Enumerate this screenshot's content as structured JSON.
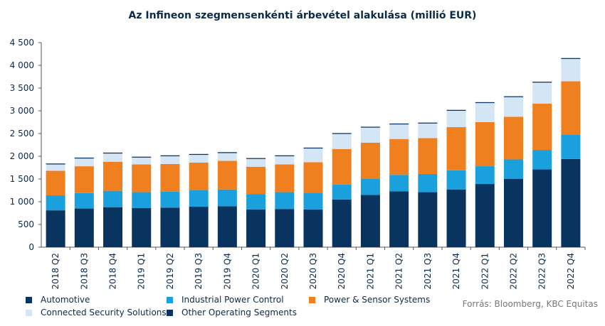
{
  "chart_data": {
    "type": "bar",
    "stacked": true,
    "title": "Az Infineon szegmensenkénti árbevétel alakulása (millió EUR)",
    "categories": [
      "2018 Q2",
      "2018 Q3",
      "2018 Q4",
      "2019 Q1",
      "2019 Q2",
      "2019 Q3",
      "2019 Q4",
      "2020 Q1",
      "2020 Q2",
      "2020 Q3",
      "2020 Q4",
      "2021 Q1",
      "2021 Q2",
      "2021 Q3",
      "2021 Q4",
      "2022 Q1",
      "2022 Q2",
      "2022 Q3",
      "2022 Q4"
    ],
    "series": [
      {
        "name": "Automotive",
        "color": "#0a3460",
        "values": [
          810,
          850,
          880,
          860,
          870,
          890,
          900,
          830,
          840,
          830,
          1050,
          1150,
          1230,
          1210,
          1270,
          1390,
          1500,
          1710,
          1940
        ]
      },
      {
        "name": "Industrial Power Control",
        "color": "#1aa0dc",
        "values": [
          330,
          340,
          360,
          350,
          350,
          370,
          370,
          340,
          370,
          370,
          330,
          360,
          360,
          400,
          420,
          390,
          430,
          430,
          540
        ]
      },
      {
        "name": "Power & Sensor Systems",
        "color": "#f07f20",
        "values": [
          540,
          590,
          640,
          610,
          610,
          600,
          630,
          600,
          610,
          670,
          780,
          790,
          790,
          790,
          950,
          970,
          940,
          1020,
          1170
        ]
      },
      {
        "name": "Connected Security Solutions",
        "color": "#d4e6f5",
        "values": [
          140,
          170,
          180,
          150,
          170,
          170,
          170,
          170,
          180,
          300,
          330,
          330,
          320,
          320,
          360,
          420,
          430,
          460,
          490
        ]
      },
      {
        "name": "Other Operating Segments",
        "color": "#0a3460",
        "values": [
          20,
          20,
          20,
          20,
          20,
          20,
          20,
          20,
          20,
          20,
          20,
          20,
          20,
          20,
          20,
          20,
          20,
          20,
          20
        ]
      }
    ],
    "ylim": [
      0,
      4500
    ],
    "yticks": [
      "0",
      "500",
      "1 000",
      "1 500",
      "2 000",
      "2 500",
      "3 000",
      "3 500",
      "4 000",
      "4 500"
    ],
    "grid": false,
    "legend_position": "bottom-left"
  },
  "source": "Forrás: Bloomberg, KBC Equitas"
}
